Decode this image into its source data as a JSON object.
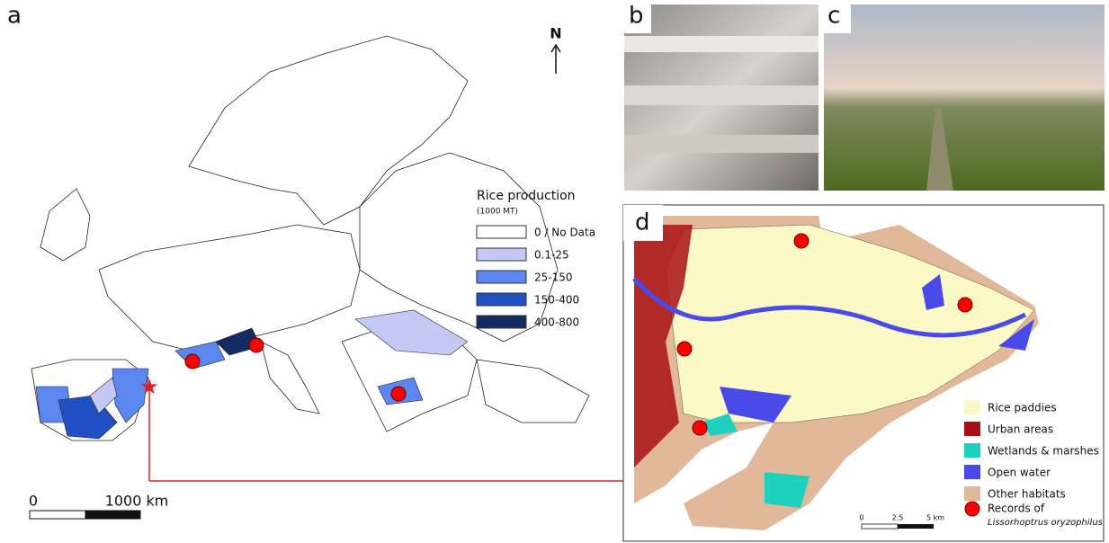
{
  "panels": {
    "a": "a",
    "b": "b",
    "c": "c",
    "d": "d"
  },
  "map_a": {
    "north": "N",
    "legend": {
      "title": "Rice production",
      "unit": "(1000 MT)",
      "items": [
        {
          "label": "0 / No Data",
          "color": "#ffffff"
        },
        {
          "label": "0.1-25",
          "color": "#c3c9f2"
        },
        {
          "label": "25-150",
          "color": "#5c86f0"
        },
        {
          "label": "150-400",
          "color": "#2150c4"
        },
        {
          "label": "400-800",
          "color": "#132a63"
        }
      ]
    },
    "scale": {
      "start": "0",
      "end": "1000 km"
    }
  },
  "map_d": {
    "legend": [
      {
        "label": "Rice paddies",
        "color": "#fbfac6"
      },
      {
        "label": "Urban areas",
        "color": "#a80f14"
      },
      {
        "label": "Wetlands & marshes",
        "color": "#1ed1bf"
      },
      {
        "label": "Open water",
        "color": "#4a4ae8"
      },
      {
        "label": "Other habitats",
        "color": "#e2b89a"
      }
    ],
    "records": {
      "label": "Records of",
      "species": "Lissorhoptrus oryzophilus",
      "color": "#ff0000"
    },
    "scale": {
      "start": "0",
      "mid": "2.5",
      "end": "5 km"
    }
  }
}
